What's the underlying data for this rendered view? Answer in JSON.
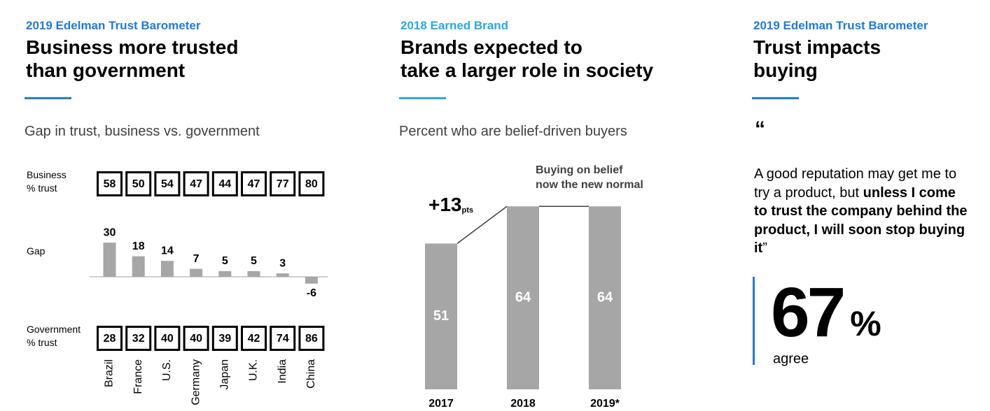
{
  "panels": [
    {
      "eyebrow": "2019 Edelman Trust Barometer",
      "eyebrow_color": "#1f7ae0",
      "title_lines": [
        "Business more trusted",
        "than government"
      ],
      "subtitle": "Gap in trust, business vs. government"
    },
    {
      "eyebrow": "2018 Earned Brand",
      "eyebrow_color": "#29a9e0",
      "title_lines": [
        "Brands expected to",
        "take a larger role in society"
      ],
      "subtitle": "Percent who are belief-driven buyers"
    },
    {
      "eyebrow": "2019 Edelman Trust Barometer",
      "eyebrow_color": "#1f7ae0",
      "title_lines": [
        "Trust impacts",
        "buying"
      ]
    }
  ],
  "chart_data": [
    {
      "type": "bar",
      "categories": [
        "Brazil",
        "France",
        "U.S.",
        "Germany",
        "Japan",
        "U.K.",
        "India",
        "China"
      ],
      "series": [
        {
          "name_lines": [
            "Business",
            "% trust"
          ],
          "values": [
            58,
            50,
            54,
            47,
            44,
            47,
            77,
            80
          ]
        },
        {
          "name_lines": [
            "Gap"
          ],
          "color": "#a6a6a6",
          "values": [
            30,
            18,
            14,
            7,
            5,
            5,
            3,
            -6
          ]
        },
        {
          "name_lines": [
            "Government",
            "% trust"
          ],
          "values": [
            28,
            32,
            40,
            40,
            39,
            42,
            74,
            86
          ]
        }
      ]
    },
    {
      "type": "bar",
      "categories": [
        "2017",
        "2018",
        "2019*"
      ],
      "values": [
        51,
        64,
        64
      ],
      "color": "#a6a6a6",
      "annotation": "+13",
      "annotation_unit": "pts",
      "callout_lines": [
        "Buying on belief",
        "now the new normal"
      ]
    }
  ],
  "quote": {
    "mark": "“",
    "segments": [
      {
        "text": "A good reputation may get me to try a product, but ",
        "bold": false
      },
      {
        "text": "unless I come to trust the company behind the product, I will soon stop buying it",
        "bold": true
      },
      {
        "text": "”",
        "bold": false
      }
    ],
    "stat": 67,
    "stat_unit": "%",
    "stat_label": "agree",
    "accent_color": "#1f7ae0"
  }
}
